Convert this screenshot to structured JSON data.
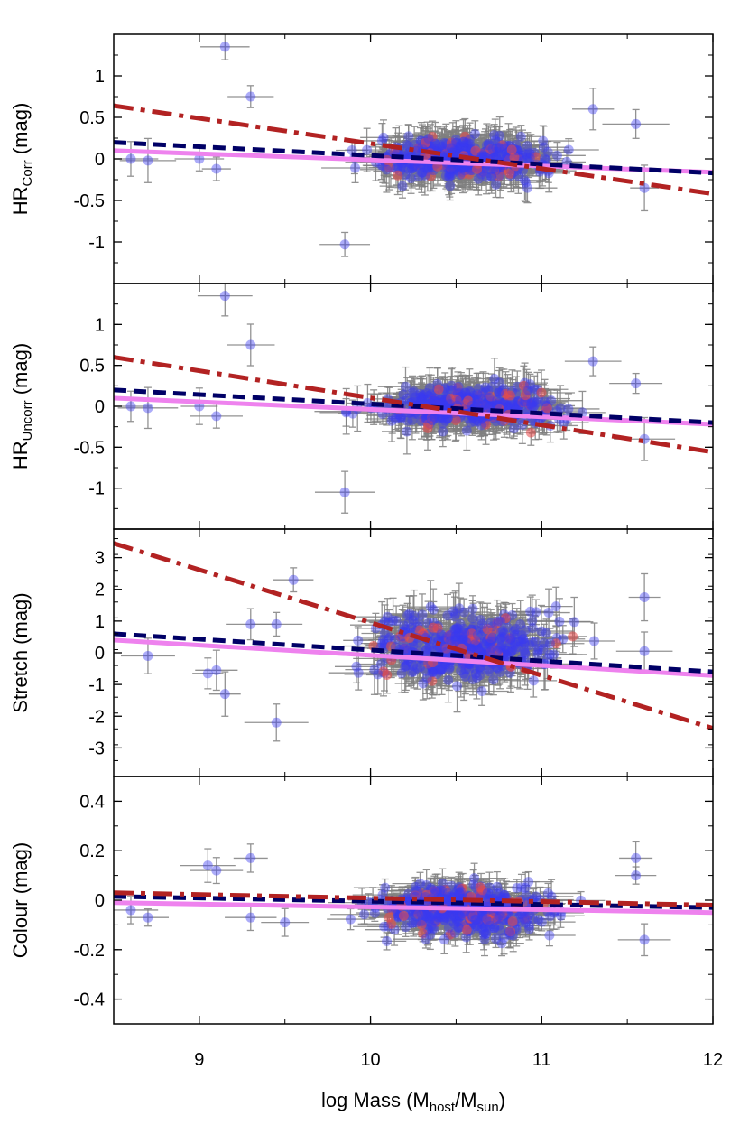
{
  "chart_data": {
    "type": "scatter",
    "layout": "4 vertically stacked panels sharing x axis",
    "xlabel": {
      "main": "log Mass (M",
      "sub1": "host",
      "mid": "/M",
      "sub2": "sun",
      "end": ")"
    },
    "xlim": [
      8.5,
      12
    ],
    "xticks": [
      "9",
      "10",
      "11",
      "12"
    ],
    "xtick_values": [
      9,
      10,
      11,
      12
    ],
    "colors": {
      "blue_points": "#3a3af0",
      "red_points": "#e84848",
      "error_bars": "#7f7f7f",
      "dashdot_line": "#b22222",
      "dashed_line": "#000066",
      "solid_line": "#ee82ee"
    },
    "panels": [
      {
        "ylabel": {
          "main": "HR",
          "sub": "Corr",
          "unit": " (mag)"
        },
        "ylim": [
          -1.5,
          1.5
        ],
        "yticks": [
          "-1",
          "-0.5",
          "0",
          "0.5",
          "1"
        ],
        "ytick_values": [
          -1,
          -0.5,
          0,
          0.5,
          1
        ],
        "cloud": {
          "center_x": 10.55,
          "spread_x": 0.45,
          "center_y": 0.0,
          "spread_y": 0.22,
          "yerr": 0.2
        },
        "lines": {
          "dashdot": {
            "x": [
              8.5,
              12
            ],
            "y": [
              0.64,
              -0.42
            ]
          },
          "dashed": {
            "x": [
              8.5,
              12
            ],
            "y": [
              0.2,
              -0.17
            ]
          },
          "solid": {
            "x": [
              8.5,
              12
            ],
            "y": [
              0.1,
              -0.16
            ]
          }
        },
        "outliers": [
          [
            9.15,
            1.35
          ],
          [
            9.3,
            0.75
          ],
          [
            8.6,
            0.0
          ],
          [
            8.7,
            -0.02
          ],
          [
            9.0,
            0.0
          ],
          [
            9.1,
            -0.12
          ],
          [
            9.85,
            -1.03
          ],
          [
            11.3,
            0.6
          ],
          [
            11.55,
            0.42
          ],
          [
            11.6,
            -0.35
          ]
        ]
      },
      {
        "ylabel": {
          "main": "HR",
          "sub": "Uncorr",
          "unit": " (mag)"
        },
        "ylim": [
          -1.5,
          1.5
        ],
        "yticks": [
          "-1",
          "-0.5",
          "0",
          "0.5",
          "1"
        ],
        "ytick_values": [
          -1,
          -0.5,
          0,
          0.5,
          1
        ],
        "cloud": {
          "center_x": 10.55,
          "spread_x": 0.45,
          "center_y": 0.0,
          "spread_y": 0.22,
          "yerr": 0.2
        },
        "lines": {
          "dashdot": {
            "x": [
              8.5,
              12
            ],
            "y": [
              0.6,
              -0.56
            ]
          },
          "dashed": {
            "x": [
              8.5,
              12
            ],
            "y": [
              0.2,
              -0.2
            ]
          },
          "solid": {
            "x": [
              8.5,
              12
            ],
            "y": [
              0.1,
              -0.22
            ]
          }
        },
        "outliers": [
          [
            9.15,
            1.35
          ],
          [
            9.3,
            0.75
          ],
          [
            8.6,
            0.0
          ],
          [
            8.7,
            -0.02
          ],
          [
            9.0,
            0.0
          ],
          [
            9.1,
            -0.12
          ],
          [
            9.85,
            -1.05
          ],
          [
            11.3,
            0.55
          ],
          [
            11.55,
            0.28
          ],
          [
            11.6,
            -0.4
          ]
        ]
      },
      {
        "ylabel": {
          "main": "Stretch",
          "sub": "",
          "unit": " (mag)"
        },
        "ylim": [
          -3.9,
          3.9
        ],
        "yticks": [
          "-3",
          "-2",
          "-1",
          "0",
          "1",
          "2",
          "3"
        ],
        "ytick_values": [
          -3,
          -2,
          -1,
          0,
          1,
          2,
          3
        ],
        "cloud": {
          "center_x": 10.55,
          "spread_x": 0.45,
          "center_y": 0.2,
          "spread_y": 1.0,
          "yerr": 0.6
        },
        "lines": {
          "dashdot": {
            "x": [
              8.5,
              12
            ],
            "y": [
              3.45,
              -2.38
            ]
          },
          "dashed": {
            "x": [
              8.5,
              12
            ],
            "y": [
              0.6,
              -0.6
            ]
          },
          "solid": {
            "x": [
              8.5,
              12
            ],
            "y": [
              0.4,
              -0.72
            ]
          }
        },
        "outliers": [
          [
            8.7,
            -0.1
          ],
          [
            9.05,
            -0.65
          ],
          [
            9.1,
            -0.55
          ],
          [
            9.15,
            -1.3
          ],
          [
            9.3,
            0.9
          ],
          [
            9.45,
            -2.2
          ],
          [
            9.45,
            0.9
          ],
          [
            9.55,
            2.3
          ],
          [
            11.6,
            1.75
          ],
          [
            11.6,
            0.05
          ]
        ]
      },
      {
        "ylabel": {
          "main": "Colour",
          "sub": "",
          "unit": " (mag)"
        },
        "ylim": [
          -0.5,
          0.5
        ],
        "yticks": [
          "-0.4",
          "-0.2",
          "0",
          "0.2",
          "0.4"
        ],
        "ytick_values": [
          -0.4,
          -0.2,
          0,
          0.2,
          0.4
        ],
        "cloud": {
          "center_x": 10.55,
          "spread_x": 0.45,
          "center_y": -0.04,
          "spread_y": 0.09,
          "yerr": 0.05
        },
        "lines": {
          "dashdot": {
            "x": [
              8.5,
              12
            ],
            "y": [
              0.03,
              -0.02
            ]
          },
          "dashed": {
            "x": [
              8.5,
              12
            ],
            "y": [
              0.015,
              -0.03
            ]
          },
          "solid": {
            "x": [
              8.5,
              12
            ],
            "y": [
              -0.01,
              -0.05
            ]
          }
        },
        "outliers": [
          [
            8.6,
            -0.04
          ],
          [
            8.7,
            -0.07
          ],
          [
            9.05,
            0.14
          ],
          [
            9.1,
            0.12
          ],
          [
            9.3,
            0.17
          ],
          [
            9.3,
            -0.07
          ],
          [
            9.5,
            -0.09
          ],
          [
            11.55,
            0.17
          ],
          [
            11.6,
            -0.16
          ],
          [
            11.55,
            0.1
          ]
        ]
      }
    ]
  }
}
